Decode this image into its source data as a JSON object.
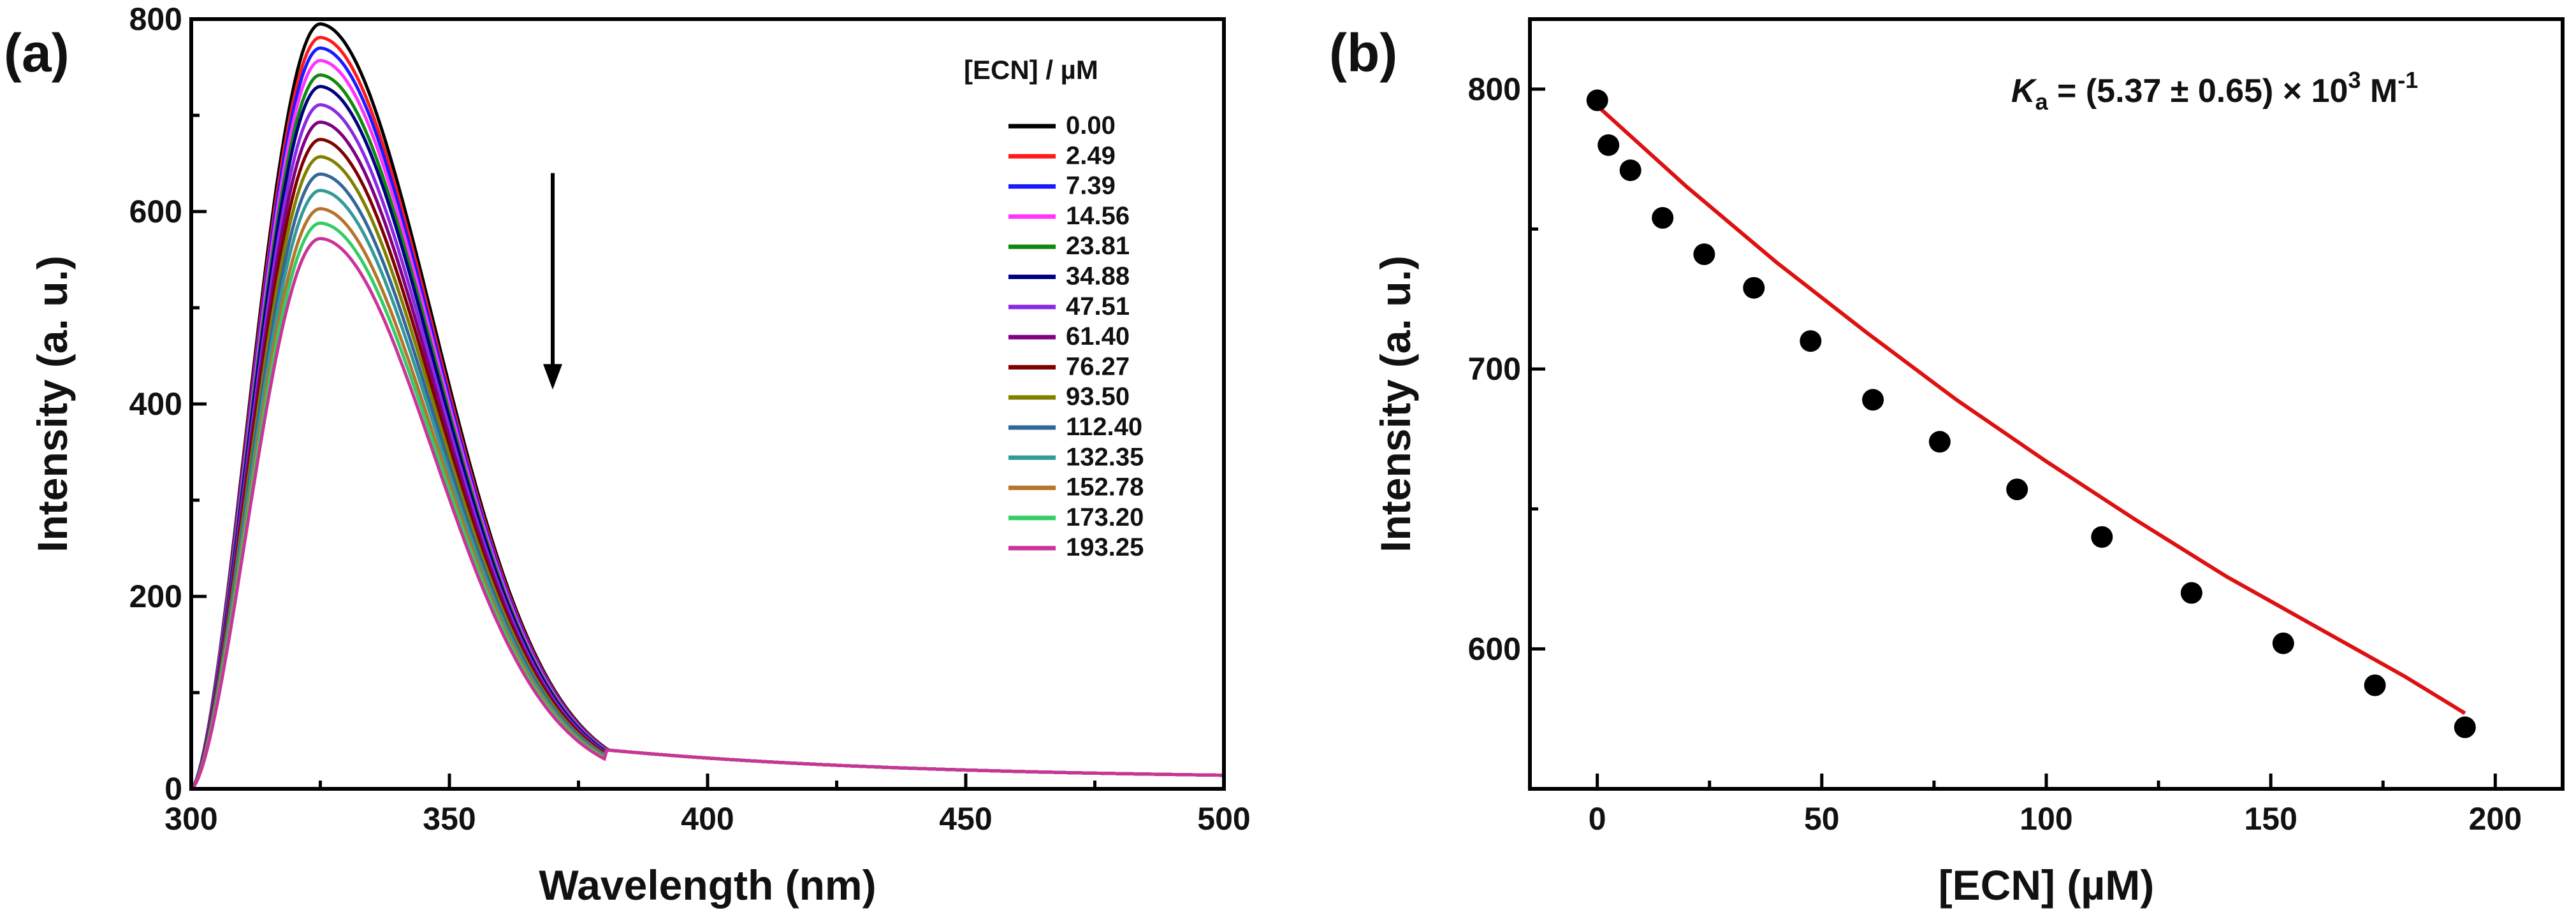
{
  "figure": {
    "panel_a_label": "(a)",
    "panel_b_label": "(b)",
    "ka": {
      "symbol": "K",
      "subscript": "a",
      "value_text": " = (5.37 ± 0.65) × 10",
      "superscript": "3",
      "unit_text": " M",
      "unit_superscript": "-1"
    }
  },
  "chart_data": [
    {
      "type": "line",
      "panel": "a",
      "xlabel": "Wavelength (nm)",
      "ylabel": "Intensity (a. u.)",
      "xlim": [
        300,
        500
      ],
      "ylim": [
        0,
        800
      ],
      "xticks": [
        300,
        350,
        400,
        450,
        500
      ],
      "yticks": [
        0,
        200,
        400,
        600,
        800
      ],
      "legend_title": "[ECN] / µM",
      "legend_position": "top-right",
      "annotation": "downward arrow at ~370 nm indicating decreasing intensity with increasing [ECN]",
      "arrow": {
        "x": 370,
        "y_start": 640,
        "y_end": 415
      },
      "peak_wavelength_nm": 325,
      "series": [
        {
          "name": "0.00",
          "color": "#000000",
          "peak": 795
        },
        {
          "name": "2.49",
          "color": "#ff1a1a",
          "peak": 781
        },
        {
          "name": "7.39",
          "color": "#1a1aff",
          "peak": 770
        },
        {
          "name": "14.56",
          "color": "#ff33ff",
          "peak": 757
        },
        {
          "name": "23.81",
          "color": "#118811",
          "peak": 742
        },
        {
          "name": "34.88",
          "color": "#000080",
          "peak": 730
        },
        {
          "name": "47.51",
          "color": "#8a2be2",
          "peak": 711
        },
        {
          "name": "61.40",
          "color": "#800080",
          "peak": 693
        },
        {
          "name": "76.27",
          "color": "#800000",
          "peak": 675
        },
        {
          "name": "93.50",
          "color": "#808000",
          "peak": 657
        },
        {
          "name": "112.40",
          "color": "#336699",
          "peak": 639
        },
        {
          "name": "132.35",
          "color": "#339999",
          "peak": 622
        },
        {
          "name": "152.78",
          "color": "#b5742c",
          "peak": 603
        },
        {
          "name": "173.20",
          "color": "#33cc66",
          "peak": 588
        },
        {
          "name": "193.25",
          "color": "#cc3399",
          "peak": 572
        }
      ]
    },
    {
      "type": "scatter",
      "panel": "b",
      "xlabel": "[ECN] (µM)",
      "ylabel": "Intensity  (a. u.)",
      "xlim": [
        -15,
        215
      ],
      "ylim": [
        550,
        825
      ],
      "xticks": [
        0,
        50,
        100,
        150,
        200
      ],
      "yticks": [
        600,
        700,
        800
      ],
      "points": [
        {
          "x": 0.0,
          "y": 796
        },
        {
          "x": 2.49,
          "y": 780
        },
        {
          "x": 7.39,
          "y": 771
        },
        {
          "x": 14.56,
          "y": 754
        },
        {
          "x": 23.81,
          "y": 741
        },
        {
          "x": 34.88,
          "y": 729
        },
        {
          "x": 47.51,
          "y": 710
        },
        {
          "x": 61.4,
          "y": 689
        },
        {
          "x": 76.27,
          "y": 674
        },
        {
          "x": 93.5,
          "y": 657
        },
        {
          "x": 112.4,
          "y": 640
        },
        {
          "x": 132.35,
          "y": 620
        },
        {
          "x": 152.78,
          "y": 602
        },
        {
          "x": 173.2,
          "y": 587
        },
        {
          "x": 193.25,
          "y": 572
        }
      ],
      "fit": {
        "color": "#dd1111",
        "x": [
          0,
          20,
          40,
          60,
          80,
          100,
          120,
          140,
          160,
          180,
          193.25
        ],
        "y": [
          794,
          765,
          738,
          713,
          689,
          667,
          646,
          626,
          608,
          590,
          577
        ]
      }
    }
  ]
}
